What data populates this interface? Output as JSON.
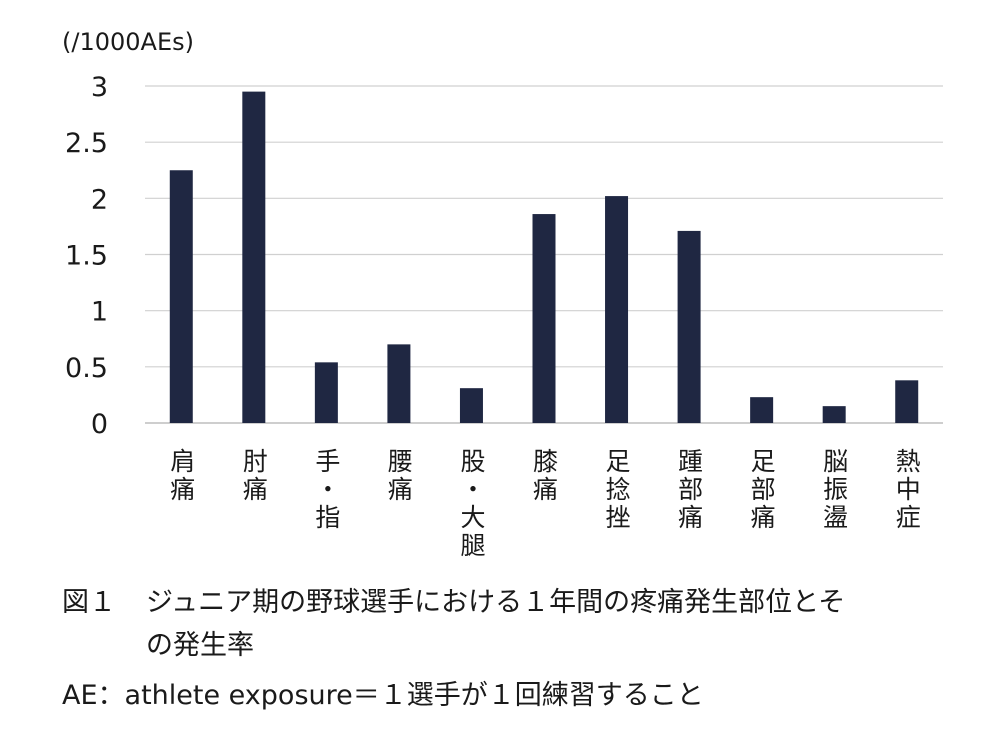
{
  "chart_data": {
    "type": "bar",
    "unit_label": "(/1000AEs)",
    "categories": [
      "肩痛",
      "肘痛",
      "手・指",
      "腰痛",
      "股・大腿",
      "膝痛",
      "足捻挫",
      "踵部痛",
      "足部痛",
      "脳振盪",
      "熱中症"
    ],
    "values": [
      2.25,
      2.95,
      0.54,
      0.7,
      0.31,
      1.86,
      2.02,
      1.71,
      0.23,
      0.15,
      0.38
    ],
    "ylim": [
      0,
      3
    ],
    "yticks": [
      "0",
      "0.5",
      "1",
      "1.5",
      "2",
      "2.5",
      "3"
    ],
    "grid": true,
    "bar_color": "#1f2742",
    "grid_color": "#d0d0d0",
    "axis_color": "#bdbdbd"
  },
  "caption": {
    "label": "図１",
    "title_line1": "ジュニア期の野球選手における１年間の疼痛発生部位とそ",
    "title_line2": "の発生率"
  },
  "note": "AE：athlete exposure＝１選手が１回練習すること"
}
